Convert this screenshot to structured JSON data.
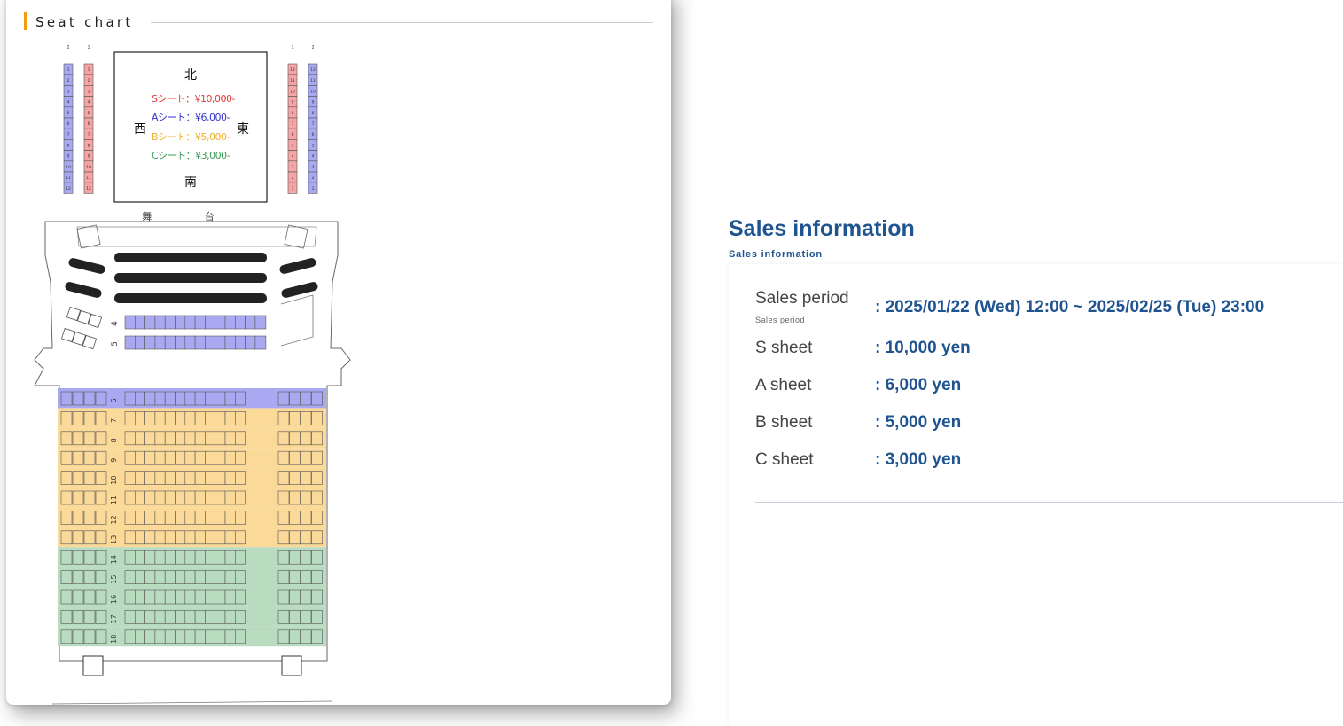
{
  "seat_chart": {
    "title": "Seat chart",
    "compass": {
      "north": "北",
      "south": "南",
      "west": "西",
      "east": "東"
    },
    "legend": [
      {
        "text": "Sシート：¥10,000-",
        "color": "#e53935"
      },
      {
        "text": "Aシート：¥6,000-",
        "color": "#3535d0"
      },
      {
        "text": "Bシート：¥5,000-",
        "color": "#f0b030"
      },
      {
        "text": "Cシート：¥3,000-",
        "color": "#3a9a58"
      }
    ],
    "stage_label": "舞 台",
    "balcony_left_cols": [
      "2",
      "1"
    ],
    "balcony_right_cols": [
      "1",
      "2"
    ],
    "colors": {
      "S": "#f5a5a5",
      "A": "#a9a9f2",
      "B": "#fbd999",
      "C": "#b9dcc1",
      "outline": "#555555"
    }
  },
  "sales": {
    "title": "Sales information",
    "subtitle": "Sales information",
    "period_label": "Sales period",
    "period_sub": "Sales period",
    "period_value": ": 2025/01/22 (Wed) 12:00 ~ 2025/02/25 (Tue) 23:00",
    "prices": [
      {
        "label": "S sheet",
        "value": ": 10,000 yen"
      },
      {
        "label": "A sheet",
        "value": ": 6,000 yen"
      },
      {
        "label": "B sheet",
        "value": ": 5,000 yen"
      },
      {
        "label": "C sheet",
        "value": ": 3,000 yen"
      }
    ]
  }
}
